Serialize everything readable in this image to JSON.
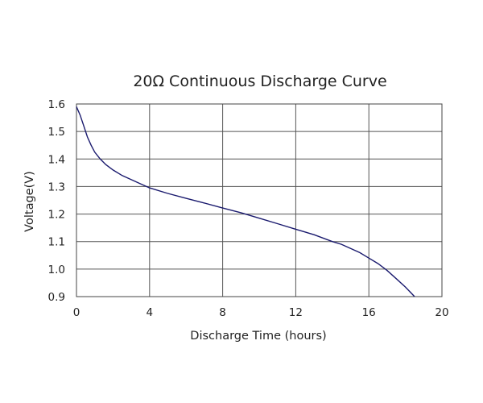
{
  "chart_data": {
    "type": "line",
    "title": "20Ω Continuous Discharge Curve",
    "xlabel": "Discharge Time (hours)",
    "ylabel": "Voltage(V)",
    "xlim": [
      0,
      20
    ],
    "ylim": [
      0.9,
      1.6
    ],
    "xticks": [
      0,
      4,
      8,
      12,
      16,
      20
    ],
    "xtick_labels": [
      "0",
      "4",
      "8",
      "12",
      "16",
      "20"
    ],
    "yticks": [
      0.9,
      1.0,
      1.1,
      1.2,
      1.3,
      1.4,
      1.5,
      1.6
    ],
    "ytick_labels": [
      "0.9",
      "1.0",
      "1.1",
      "1.2",
      "1.3",
      "1.4",
      "1.5",
      "1.6"
    ],
    "grid": true,
    "line_color": "#1a1a6e",
    "series": [
      {
        "x": [
          0,
          0.2,
          0.4,
          0.6,
          0.8,
          1.0,
          1.3,
          1.6,
          2.0,
          2.5,
          3.0,
          3.5,
          4.0,
          5.0,
          6.0,
          7.0,
          8.0,
          9.0,
          10.0,
          11.0,
          12.0,
          13.0,
          14.0,
          14.5,
          15.0,
          15.5,
          16.0,
          16.5,
          17.0,
          17.5,
          18.0,
          18.5
        ],
        "y": [
          1.59,
          1.56,
          1.52,
          1.48,
          1.45,
          1.425,
          1.4,
          1.38,
          1.36,
          1.34,
          1.325,
          1.31,
          1.295,
          1.275,
          1.257,
          1.24,
          1.222,
          1.205,
          1.185,
          1.165,
          1.145,
          1.125,
          1.1,
          1.09,
          1.075,
          1.06,
          1.04,
          1.02,
          0.995,
          0.965,
          0.935,
          0.9
        ]
      }
    ]
  }
}
